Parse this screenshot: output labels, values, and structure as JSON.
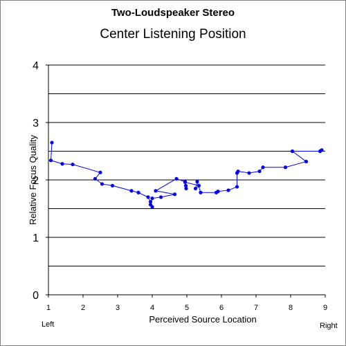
{
  "chart_data": {
    "type": "line",
    "title": "Two-Loudspeaker Stereo",
    "subtitle": "Center Listening Position",
    "xlabel": "Perceived Source Location",
    "ylabel": "Relative Focus Quality",
    "xlim": [
      1,
      9
    ],
    "ylim": [
      0,
      4
    ],
    "x_ticks": [
      "1",
      "2",
      "3",
      "4",
      "5",
      "6",
      "7",
      "8",
      "9"
    ],
    "y_ticks": [
      "0",
      "1",
      "2",
      "3",
      "4"
    ],
    "x_end_labels": {
      "left": "Left",
      "right": "Right"
    },
    "grid": "horizontal",
    "line_color": "#0000ff",
    "marker_color": "#0000ff",
    "series": [
      {
        "points": [
          [
            1.1,
            2.65
          ],
          [
            1.07,
            2.34
          ],
          [
            1.4,
            2.28
          ],
          [
            1.7,
            2.27
          ],
          [
            2.5,
            2.13
          ],
          [
            2.35,
            2.02
          ],
          [
            2.55,
            1.93
          ],
          [
            2.85,
            1.9
          ],
          [
            3.4,
            1.81
          ],
          [
            3.6,
            1.78
          ],
          [
            3.88,
            1.7
          ],
          [
            3.95,
            1.62
          ],
          [
            4.0,
            1.53
          ],
          [
            3.95,
            1.57
          ],
          [
            4.0,
            1.68
          ],
          [
            4.25,
            1.7
          ],
          [
            4.65,
            1.75
          ],
          [
            4.1,
            1.81
          ],
          [
            4.7,
            2.02
          ],
          [
            4.95,
            1.97
          ],
          [
            4.97,
            1.9
          ],
          [
            4.98,
            1.85
          ],
          [
            4.95,
            1.96
          ],
          [
            5.35,
            1.9
          ],
          [
            5.25,
            1.85
          ],
          [
            5.3,
            1.97
          ],
          [
            5.4,
            1.78
          ],
          [
            5.85,
            1.78
          ],
          [
            5.9,
            1.8
          ],
          [
            6.2,
            1.82
          ],
          [
            6.45,
            1.88
          ],
          [
            6.45,
            2.12
          ],
          [
            6.48,
            2.15
          ],
          [
            6.8,
            2.12
          ],
          [
            7.1,
            2.15
          ],
          [
            7.2,
            2.22
          ],
          [
            7.85,
            2.22
          ],
          [
            8.45,
            2.32
          ],
          [
            8.05,
            2.5
          ],
          [
            8.85,
            2.5
          ],
          [
            8.9,
            2.52
          ]
        ]
      }
    ]
  }
}
